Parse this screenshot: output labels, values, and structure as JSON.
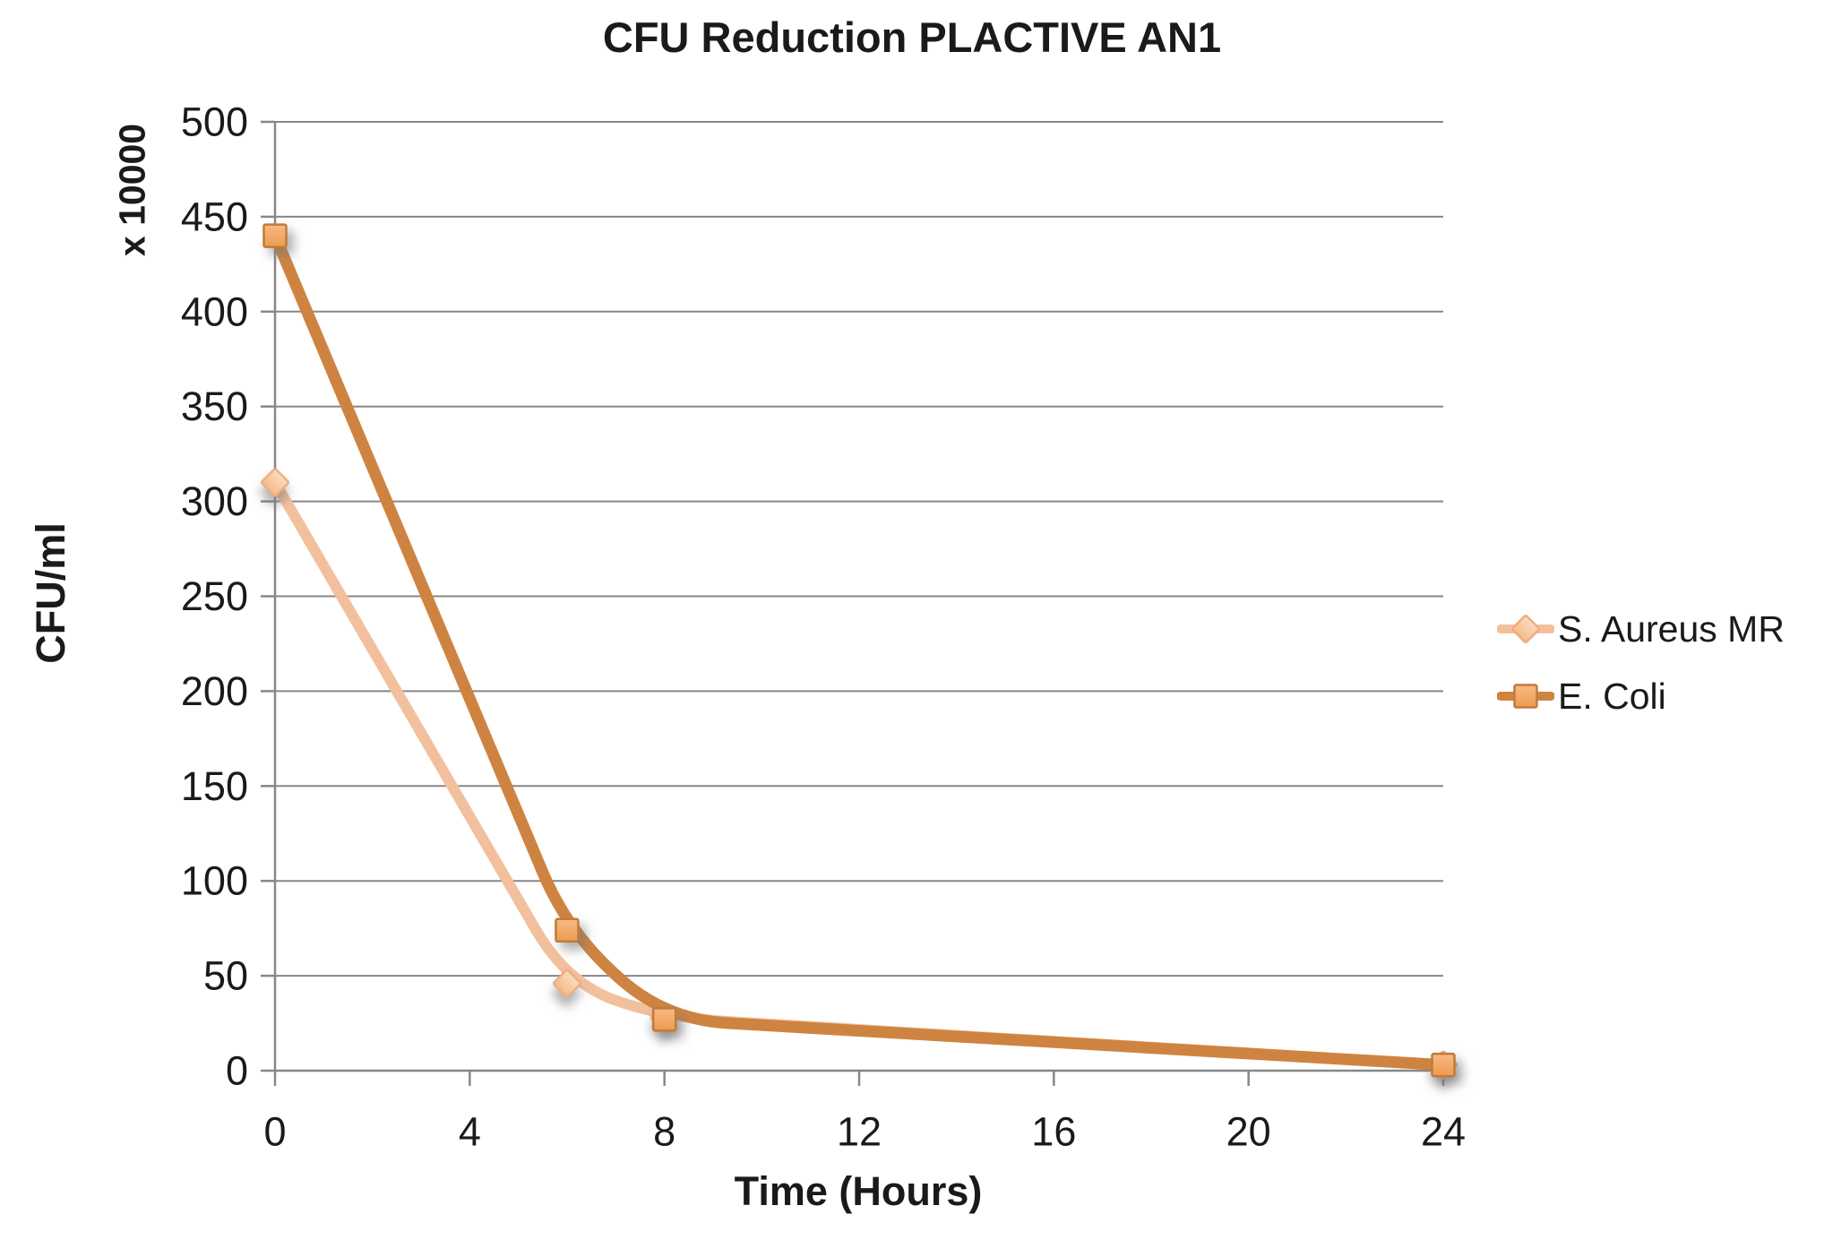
{
  "chart_data": {
    "type": "line",
    "title": "CFU Reduction PLACTIVE AN1",
    "xlabel": "Time (Hours)",
    "ylabel": "CFU/ml",
    "y_unit_label": "x 10000",
    "x": [
      0,
      6,
      8,
      24
    ],
    "xticks": [
      0,
      4,
      8,
      12,
      16,
      20,
      24
    ],
    "xlim": [
      0,
      24
    ],
    "ylim": [
      0,
      500
    ],
    "ytick_step": 50,
    "grid": "horizontal",
    "smooth": true,
    "legend_position": "right",
    "series": [
      {
        "name": "S. Aureus MR",
        "marker": "diamond",
        "values": [
          310,
          46,
          28,
          3
        ],
        "line_color": "#F2C09D",
        "marker_border": "#EDAE7E",
        "marker_fill_top": "#FBDCC0",
        "marker_fill_bottom": "#F3BA8A"
      },
      {
        "name": "E. Coli",
        "marker": "square",
        "values": [
          440,
          74,
          27,
          3
        ],
        "line_color": "#CE8440",
        "marker_border": "#C07B39",
        "marker_fill_top": "#F6BA85",
        "marker_fill_bottom": "#EE9B4E"
      }
    ],
    "colors": {
      "gridline": "#878787",
      "axis": "#878787",
      "text": "#1a1a1a",
      "background": "#ffffff"
    }
  }
}
